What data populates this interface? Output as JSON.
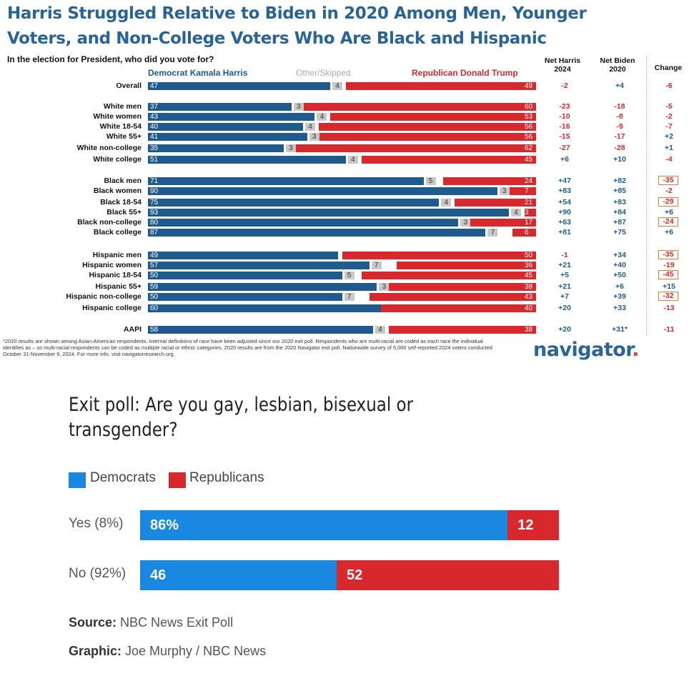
{
  "top_title_line1": "Harris Struggled Relative to Biden in 2020 Among Men, Younger",
  "top_title_line2": "Voters, and Non-College Voters Who Are Black and Hispanic",
  "question": "In the election for President, who did you vote for?",
  "legend": {
    "harris": "Democrat Kamala Harris",
    "other": "Other/Skipped",
    "trump": "Republican Donald Trump"
  },
  "column_headers": {
    "net_harris": [
      "Net Harris",
      "2024"
    ],
    "net_biden": [
      "Net Biden",
      "2020"
    ],
    "change": "Change"
  },
  "colors": {
    "harris_blue": "#1f5a8f",
    "trump_red": "#d6282d",
    "other_gray": "#c8c8c8",
    "highlight_orange": "#e07b39",
    "nbc_blue": "#1a88e0",
    "nbc_red": "#d6282d",
    "brand": "#2a6496"
  },
  "footnote": "*2020 results are shown among Asian-American respondents. Internal definitions of race have been adjusted since our 2020 exit poll. Respondents who are multi-racial are coded as each race the individual identifies as – so multi-racial respondents can be coded as multiple racial or ethnic categories. 2020 results are from the 2020 Navigator exit poll. Nationwide survey of 5,000 self-reported 2024 voters conducted October 31-November 9, 2024. For more info, visit navigatorresearch.org.",
  "logo": {
    "text": "navigator",
    "dot": "."
  },
  "chart_data": [
    {
      "type": "bar",
      "stacked": true,
      "orientation": "horizontal",
      "title": "Harris Struggled Relative to Biden in 2020 Among Men, Younger Voters, and Non-College Voters Who Are Black and Hispanic",
      "categories": [
        "Overall",
        "White men",
        "White women",
        "White 18-54",
        "White 55+",
        "White non-college",
        "White college",
        "Black men",
        "Black women",
        "Black 18-54",
        "Black 55+",
        "Black non-college",
        "Black college",
        "Hispanic men",
        "Hispanic women",
        "Hispanic 18-54",
        "Hispanic 55+",
        "Hispanic non-college",
        "Hispanic college",
        "AAPI"
      ],
      "series": [
        {
          "name": "Democrat Kamala Harris",
          "values": [
            47,
            37,
            43,
            40,
            41,
            35,
            51,
            71,
            90,
            75,
            93,
            80,
            87,
            49,
            57,
            50,
            59,
            50,
            60,
            58
          ]
        },
        {
          "name": "Other/Skipped",
          "values": [
            4,
            3,
            4,
            4,
            3,
            3,
            4,
            5,
            3,
            4,
            4,
            3,
            7,
            null,
            7,
            5,
            3,
            7,
            null,
            4
          ]
        },
        {
          "name": "Republican Donald Trump",
          "values": [
            49,
            60,
            53,
            56,
            56,
            62,
            45,
            24,
            7,
            21,
            3,
            17,
            6,
            50,
            36,
            45,
            38,
            43,
            40,
            38
          ]
        }
      ],
      "net_harris_2024": [
        "-2",
        "-23",
        "-10",
        "-16",
        "-15",
        "-27",
        "+6",
        "+47",
        "+83",
        "+54",
        "+90",
        "+63",
        "+81",
        "-1",
        "+21",
        "+5",
        "+21",
        "+7",
        "+20",
        "+20"
      ],
      "net_biden_2020": [
        "+4",
        "-18",
        "-8",
        "-9",
        "-17",
        "-28",
        "+10",
        "+82",
        "+85",
        "+83",
        "+84",
        "+87",
        "+75",
        "+34",
        "+40",
        "+50",
        "+6",
        "+39",
        "+33",
        "+31*"
      ],
      "change": [
        "-6",
        "-5",
        "-2",
        "-7",
        "+2",
        "+1",
        "-4",
        "-35",
        "-2",
        "-29",
        "+6",
        "-24",
        "+6",
        "-35",
        "-19",
        "-45",
        "+15",
        "-32",
        "-13",
        "-11"
      ],
      "change_boxed": [
        false,
        false,
        false,
        false,
        false,
        false,
        false,
        true,
        false,
        true,
        false,
        true,
        false,
        true,
        false,
        true,
        false,
        true,
        false,
        false
      ],
      "xlim": [
        0,
        100
      ]
    },
    {
      "type": "bar",
      "stacked": true,
      "orientation": "horizontal",
      "title": "Exit poll: Are you gay, lesbian, bisexual or transgender?",
      "categories": [
        "Yes (8%)",
        "No (92%)"
      ],
      "series": [
        {
          "name": "Democrats",
          "values": [
            86,
            46
          ],
          "labels": [
            "86%",
            "46"
          ]
        },
        {
          "name": "Republicans",
          "values": [
            12,
            52
          ],
          "labels": [
            "12",
            "52"
          ]
        }
      ],
      "xlim": [
        0,
        100
      ]
    }
  ],
  "source": {
    "label": "Source:",
    "text": " NBC News Exit Poll"
  },
  "graphic": {
    "label": "Graphic:",
    "text": " Joe Murphy / NBC News"
  }
}
